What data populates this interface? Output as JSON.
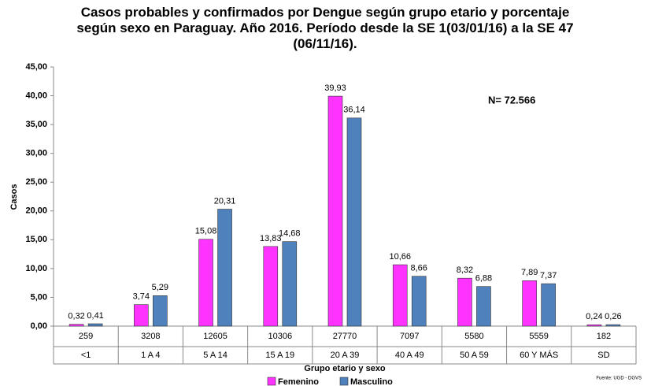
{
  "chart_data": {
    "type": "bar",
    "title": "Casos probables y confirmados por Dengue según grupo etario y porcentaje según sexo en Paraguay. Año 2016. Período desde la SE 1(03/01/16) a la SE 47 (06/11/16).",
    "y_label": "Casos",
    "x_label": "Grupo etario y sexo",
    "annotation": "N= 72.566",
    "source": "Fuente: UGD - DGVS",
    "category_counts": [
      259,
      3208,
      12605,
      10306,
      27770,
      7097,
      5580,
      5559,
      182
    ],
    "categories": [
      "<1",
      "1 A 4",
      "5 A 14",
      "15 A 19",
      "20 A 39",
      "40 A 49",
      "50 A 59",
      "60 Y MÁS",
      "SD"
    ],
    "series": [
      {
        "name": "Femenino",
        "color": "#ff33ff",
        "values": [
          0.32,
          3.74,
          15.08,
          13.83,
          39.93,
          10.66,
          8.32,
          7.89,
          0.24
        ],
        "value_labels": [
          "0,32",
          "3,74",
          "15,08",
          "13,83",
          "39,93",
          "10,66",
          "8,32",
          "7,89",
          "0,24"
        ]
      },
      {
        "name": "Masculino",
        "color": "#4f81bd",
        "values": [
          0.41,
          5.29,
          20.31,
          14.68,
          36.14,
          8.66,
          6.88,
          7.37,
          0.26
        ],
        "value_labels": [
          "0,41",
          "5,29",
          "20,31",
          "14,68",
          "36,14",
          "8,66",
          "6,88",
          "7,37",
          "0,26"
        ]
      }
    ],
    "ylim": [
      0,
      45
    ],
    "yticks": [
      {
        "value": 0,
        "label": "0,00"
      },
      {
        "value": 5,
        "label": "5,00"
      },
      {
        "value": 10,
        "label": "10,00"
      },
      {
        "value": 15,
        "label": "15,00"
      },
      {
        "value": 20,
        "label": "20,00"
      },
      {
        "value": 25,
        "label": "25,00"
      },
      {
        "value": 30,
        "label": "30,00"
      },
      {
        "value": 35,
        "label": "35,00"
      },
      {
        "value": 40,
        "label": "40,00"
      },
      {
        "value": 45,
        "label": "45,00"
      }
    ],
    "grid": false,
    "legend": "bottom"
  }
}
